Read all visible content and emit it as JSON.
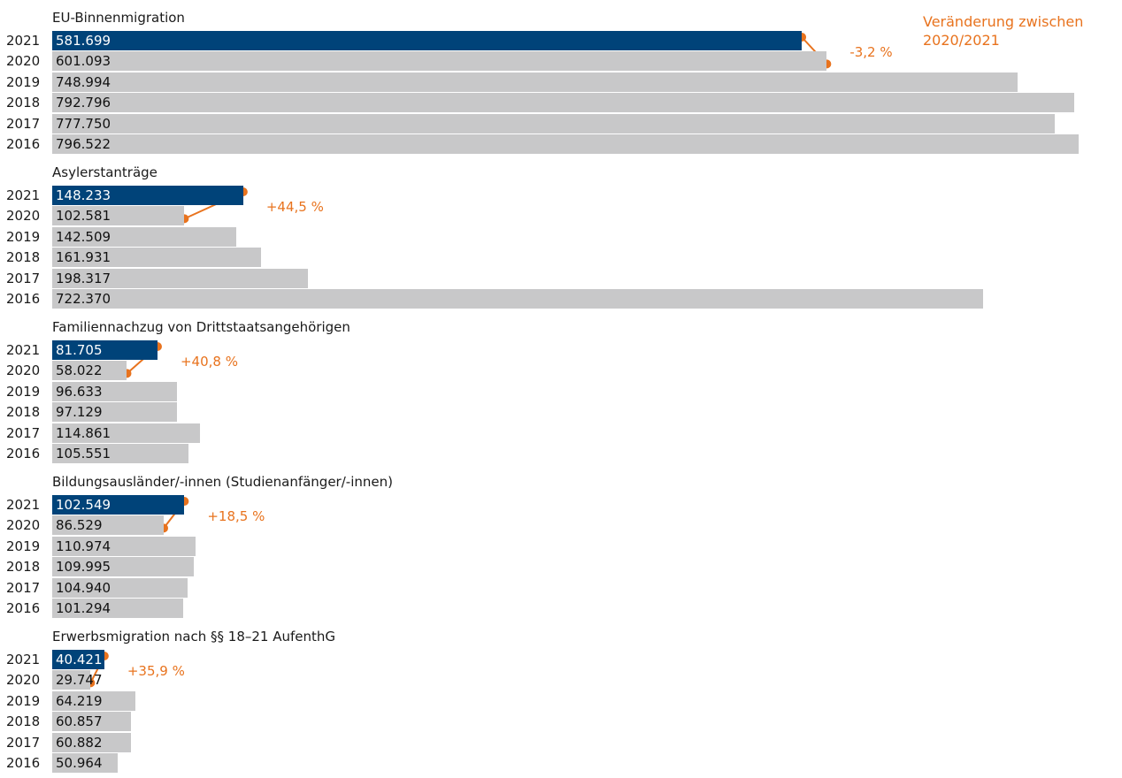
{
  "note": "Veränderung zwischen 2020/2021",
  "chart_data": [
    {
      "type": "hbar",
      "title": "EU-Binnenmigration",
      "categories": [
        "2021",
        "2020",
        "2019",
        "2018",
        "2017",
        "2016"
      ],
      "values": [
        581699,
        601093,
        748994,
        792796,
        777750,
        796522
      ],
      "value_labels": [
        "581.699",
        "601.093",
        "748.994",
        "792.796",
        "777.750",
        "796.522"
      ],
      "colors": [
        "#004379",
        "#c8c8c9",
        "#c8c8c9",
        "#c8c8c9",
        "#c8c8c9",
        "#c8c8c9"
      ],
      "annotation": "-3,2 %",
      "annotation_color": "#e8731e",
      "xlim": [
        0,
        800000
      ]
    },
    {
      "type": "hbar",
      "title": "Asylerstanträge",
      "categories": [
        "2021",
        "2020",
        "2019",
        "2018",
        "2017",
        "2016"
      ],
      "values": [
        148233,
        102581,
        142509,
        161931,
        198317,
        722370
      ],
      "value_labels": [
        "148.233",
        "102.581",
        "142.509",
        "161.931",
        "198.317",
        "722.370"
      ],
      "colors": [
        "#004379",
        "#c8c8c9",
        "#c8c8c9",
        "#c8c8c9",
        "#c8c8c9",
        "#c8c8c9"
      ],
      "annotation": "+44,5 %",
      "annotation_color": "#e8731e",
      "xlim": [
        0,
        800000
      ]
    },
    {
      "type": "hbar",
      "title": "Familiennachzug von Drittstaatsangehörigen",
      "categories": [
        "2021",
        "2020",
        "2019",
        "2018",
        "2017",
        "2016"
      ],
      "values": [
        81705,
        58022,
        96633,
        97129,
        114861,
        105551
      ],
      "value_labels": [
        "81.705",
        "58.022",
        "96.633",
        "97.129",
        "114.861",
        "105.551"
      ],
      "colors": [
        "#004379",
        "#c8c8c9",
        "#c8c8c9",
        "#c8c8c9",
        "#c8c8c9",
        "#c8c8c9"
      ],
      "annotation": "+40,8 %",
      "annotation_color": "#e8731e",
      "xlim": [
        0,
        800000
      ]
    },
    {
      "type": "hbar",
      "title": "Bildungsausländer/-innen (Studienanfänger/-innen)",
      "categories": [
        "2021",
        "2020",
        "2019",
        "2018",
        "2017",
        "2016"
      ],
      "values": [
        102549,
        86529,
        110974,
        109995,
        104940,
        101294
      ],
      "value_labels": [
        "102.549",
        "86.529",
        "110.974",
        "109.995",
        "104.940",
        "101.294"
      ],
      "colors": [
        "#004379",
        "#c8c8c9",
        "#c8c8c9",
        "#c8c8c9",
        "#c8c8c9",
        "#c8c8c9"
      ],
      "annotation": "+18,5 %",
      "annotation_color": "#e8731e",
      "xlim": [
        0,
        800000
      ]
    },
    {
      "type": "hbar",
      "title": "Erwerbsmigration nach §§ 18–21 AufenthG",
      "categories": [
        "2021",
        "2020",
        "2019",
        "2018",
        "2017",
        "2016"
      ],
      "values": [
        40421,
        29747,
        64219,
        60857,
        60882,
        50964
      ],
      "value_labels": [
        "40.421",
        "29.747",
        "64.219",
        "60.857",
        "60.882",
        "50.964"
      ],
      "colors": [
        "#004379",
        "#c8c8c9",
        "#c8c8c9",
        "#c8c8c9",
        "#c8c8c9",
        "#c8c8c9"
      ],
      "annotation": "+35,9 %",
      "annotation_color": "#e8731e",
      "xlim": [
        0,
        800000
      ]
    }
  ]
}
